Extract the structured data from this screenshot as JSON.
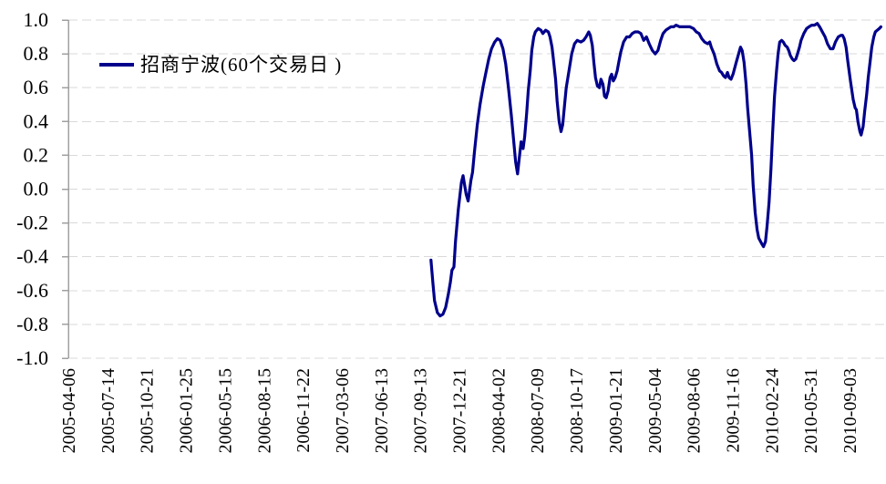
{
  "chart_data": {
    "type": "line",
    "title": "",
    "xlabel": "",
    "ylabel": "",
    "ylim": [
      -1.0,
      1.0
    ],
    "grid": "horizontal-dashed",
    "legend_position": "top-left-inside",
    "colors": {
      "series": "#00008B",
      "grid": "#d9d9d9",
      "axis": "#a0a0a0",
      "text": "#000000",
      "background": "#ffffff"
    },
    "y_ticks": [
      "1.0",
      "0.8",
      "0.6",
      "0.4",
      "0.2",
      "0.0",
      "-0.2",
      "-0.4",
      "-0.6",
      "-0.8",
      "-1.0"
    ],
    "x_ticks": [
      "2005-04-06",
      "2005-07-14",
      "2005-10-21",
      "2006-01-25",
      "2006-05-15",
      "2006-08-15",
      "2006-11-22",
      "2007-03-06",
      "2007-06-13",
      "2007-09-13",
      "2007-12-21",
      "2008-04-02",
      "2008-07-09",
      "2008-10-17",
      "2009-01-21",
      "2009-05-04",
      "2009-08-06",
      "2009-11-16",
      "2010-02-24",
      "2010-05-31",
      "2010-09-03"
    ],
    "series": [
      {
        "name": "招商宁波(60个交易日 )",
        "color": "#00008B",
        "points": [
          [
            "2007-10-08",
            -0.42
          ],
          [
            "2007-10-13",
            -0.56
          ],
          [
            "2007-10-17",
            -0.66
          ],
          [
            "2007-10-24",
            -0.73
          ],
          [
            "2007-10-31",
            -0.75
          ],
          [
            "2007-11-07",
            -0.74
          ],
          [
            "2007-11-14",
            -0.7
          ],
          [
            "2007-11-21",
            -0.62
          ],
          [
            "2007-11-26",
            -0.55
          ],
          [
            "2007-11-30",
            -0.48
          ],
          [
            "2007-12-05",
            -0.46
          ],
          [
            "2007-12-09",
            -0.31
          ],
          [
            "2007-12-16",
            -0.12
          ],
          [
            "2007-12-24",
            0.04
          ],
          [
            "2007-12-28",
            0.08
          ],
          [
            "2008-01-05",
            -0.03
          ],
          [
            "2008-01-10",
            -0.07
          ],
          [
            "2008-01-17",
            0.05
          ],
          [
            "2008-01-21",
            0.1
          ],
          [
            "2008-01-26",
            0.22
          ],
          [
            "2008-02-02",
            0.38
          ],
          [
            "2008-02-09",
            0.5
          ],
          [
            "2008-02-17",
            0.61
          ],
          [
            "2008-02-24",
            0.69
          ],
          [
            "2008-03-02",
            0.77
          ],
          [
            "2008-03-09",
            0.83
          ],
          [
            "2008-03-17",
            0.87
          ],
          [
            "2008-03-24",
            0.89
          ],
          [
            "2008-03-31",
            0.88
          ],
          [
            "2008-04-07",
            0.83
          ],
          [
            "2008-04-14",
            0.74
          ],
          [
            "2008-04-21",
            0.6
          ],
          [
            "2008-04-28",
            0.44
          ],
          [
            "2008-05-09",
            0.16
          ],
          [
            "2008-05-14",
            0.09
          ],
          [
            "2008-05-18",
            0.18
          ],
          [
            "2008-05-23",
            0.28
          ],
          [
            "2008-05-28",
            0.24
          ],
          [
            "2008-06-01",
            0.31
          ],
          [
            "2008-06-06",
            0.45
          ],
          [
            "2008-06-10",
            0.58
          ],
          [
            "2008-06-15",
            0.7
          ],
          [
            "2008-06-19",
            0.82
          ],
          [
            "2008-06-24",
            0.9
          ],
          [
            "2008-06-28",
            0.93
          ],
          [
            "2008-07-05",
            0.95
          ],
          [
            "2008-07-12",
            0.94
          ],
          [
            "2008-07-17",
            0.92
          ],
          [
            "2008-07-24",
            0.94
          ],
          [
            "2008-07-31",
            0.93
          ],
          [
            "2008-08-04",
            0.9
          ],
          [
            "2008-08-09",
            0.84
          ],
          [
            "2008-08-13",
            0.76
          ],
          [
            "2008-08-18",
            0.65
          ],
          [
            "2008-08-22",
            0.52
          ],
          [
            "2008-08-27",
            0.4
          ],
          [
            "2008-09-01",
            0.34
          ],
          [
            "2008-09-05",
            0.38
          ],
          [
            "2008-09-10",
            0.5
          ],
          [
            "2008-09-14",
            0.6
          ],
          [
            "2008-09-21",
            0.7
          ],
          [
            "2008-09-28",
            0.8
          ],
          [
            "2008-10-05",
            0.86
          ],
          [
            "2008-10-12",
            0.88
          ],
          [
            "2008-10-21",
            0.87
          ],
          [
            "2008-10-28",
            0.88
          ],
          [
            "2008-11-03",
            0.9
          ],
          [
            "2008-11-10",
            0.93
          ],
          [
            "2008-11-14",
            0.91
          ],
          [
            "2008-11-19",
            0.85
          ],
          [
            "2008-11-23",
            0.75
          ],
          [
            "2008-11-27",
            0.66
          ],
          [
            "2008-12-02",
            0.61
          ],
          [
            "2008-12-07",
            0.6
          ],
          [
            "2008-12-11",
            0.65
          ],
          [
            "2008-12-16",
            0.62
          ],
          [
            "2008-12-20",
            0.55
          ],
          [
            "2008-12-24",
            0.54
          ],
          [
            "2008-12-29",
            0.58
          ],
          [
            "2009-01-03",
            0.66
          ],
          [
            "2009-01-07",
            0.68
          ],
          [
            "2009-01-11",
            0.64
          ],
          [
            "2009-01-16",
            0.66
          ],
          [
            "2009-01-21",
            0.7
          ],
          [
            "2009-01-25",
            0.75
          ],
          [
            "2009-01-30",
            0.81
          ],
          [
            "2009-02-06",
            0.87
          ],
          [
            "2009-02-14",
            0.9
          ],
          [
            "2009-02-21",
            0.9
          ],
          [
            "2009-02-28",
            0.92
          ],
          [
            "2009-03-07",
            0.93
          ],
          [
            "2009-03-15",
            0.93
          ],
          [
            "2009-03-22",
            0.92
          ],
          [
            "2009-03-29",
            0.88
          ],
          [
            "2009-04-05",
            0.9
          ],
          [
            "2009-04-12",
            0.86
          ],
          [
            "2009-04-20",
            0.82
          ],
          [
            "2009-04-27",
            0.8
          ],
          [
            "2009-05-04",
            0.82
          ],
          [
            "2009-05-11",
            0.88
          ],
          [
            "2009-05-17",
            0.92
          ],
          [
            "2009-05-24",
            0.94
          ],
          [
            "2009-05-30",
            0.95
          ],
          [
            "2009-06-06",
            0.96
          ],
          [
            "2009-06-13",
            0.96
          ],
          [
            "2009-06-19",
            0.97
          ],
          [
            "2009-06-28",
            0.96
          ],
          [
            "2009-07-07",
            0.96
          ],
          [
            "2009-07-15",
            0.96
          ],
          [
            "2009-07-24",
            0.96
          ],
          [
            "2009-08-02",
            0.95
          ],
          [
            "2009-08-09",
            0.93
          ],
          [
            "2009-08-16",
            0.92
          ],
          [
            "2009-08-23",
            0.89
          ],
          [
            "2009-08-30",
            0.87
          ],
          [
            "2009-09-07",
            0.86
          ],
          [
            "2009-09-12",
            0.87
          ],
          [
            "2009-09-16",
            0.84
          ],
          [
            "2009-09-23",
            0.8
          ],
          [
            "2009-09-30",
            0.74
          ],
          [
            "2009-10-07",
            0.7
          ],
          [
            "2009-10-12",
            0.69
          ],
          [
            "2009-10-17",
            0.67
          ],
          [
            "2009-10-22",
            0.66
          ],
          [
            "2009-10-27",
            0.69
          ],
          [
            "2009-10-31",
            0.66
          ],
          [
            "2009-11-05",
            0.65
          ],
          [
            "2009-11-10",
            0.68
          ],
          [
            "2009-11-17",
            0.74
          ],
          [
            "2009-11-24",
            0.8
          ],
          [
            "2009-11-29",
            0.84
          ],
          [
            "2009-12-03",
            0.82
          ],
          [
            "2009-12-08",
            0.75
          ],
          [
            "2009-12-13",
            0.62
          ],
          [
            "2009-12-17",
            0.48
          ],
          [
            "2009-12-22",
            0.34
          ],
          [
            "2009-12-27",
            0.2
          ],
          [
            "2009-12-31",
            0.02
          ],
          [
            "2010-01-05",
            -0.14
          ],
          [
            "2010-01-10",
            -0.24
          ],
          [
            "2010-01-14",
            -0.29
          ],
          [
            "2010-01-21",
            -0.32
          ],
          [
            "2010-01-26",
            -0.34
          ],
          [
            "2010-01-31",
            -0.31
          ],
          [
            "2010-02-04",
            -0.22
          ],
          [
            "2010-02-09",
            -0.08
          ],
          [
            "2010-02-14",
            0.12
          ],
          [
            "2010-02-18",
            0.33
          ],
          [
            "2010-02-23",
            0.55
          ],
          [
            "2010-02-28",
            0.7
          ],
          [
            "2010-03-04",
            0.8
          ],
          [
            "2010-03-08",
            0.87
          ],
          [
            "2010-03-13",
            0.88
          ],
          [
            "2010-03-17",
            0.87
          ],
          [
            "2010-03-22",
            0.85
          ],
          [
            "2010-03-27",
            0.84
          ],
          [
            "2010-03-31",
            0.82
          ],
          [
            "2010-04-04",
            0.79
          ],
          [
            "2010-04-09",
            0.77
          ],
          [
            "2010-04-13",
            0.76
          ],
          [
            "2010-04-18",
            0.77
          ],
          [
            "2010-04-22",
            0.8
          ],
          [
            "2010-04-27",
            0.84
          ],
          [
            "2010-05-01",
            0.88
          ],
          [
            "2010-05-08",
            0.92
          ],
          [
            "2010-05-15",
            0.95
          ],
          [
            "2010-05-21",
            0.96
          ],
          [
            "2010-05-28",
            0.97
          ],
          [
            "2010-06-04",
            0.97
          ],
          [
            "2010-06-11",
            0.98
          ],
          [
            "2010-06-17",
            0.96
          ],
          [
            "2010-06-24",
            0.93
          ],
          [
            "2010-07-01",
            0.9
          ],
          [
            "2010-07-07",
            0.86
          ],
          [
            "2010-07-14",
            0.83
          ],
          [
            "2010-07-21",
            0.83
          ],
          [
            "2010-07-27",
            0.87
          ],
          [
            "2010-08-03",
            0.9
          ],
          [
            "2010-08-10",
            0.91
          ],
          [
            "2010-08-14",
            0.91
          ],
          [
            "2010-08-18",
            0.89
          ],
          [
            "2010-08-23",
            0.84
          ],
          [
            "2010-08-27",
            0.76
          ],
          [
            "2010-09-03",
            0.64
          ],
          [
            "2010-09-10",
            0.53
          ],
          [
            "2010-09-15",
            0.48
          ],
          [
            "2010-09-18",
            0.47
          ],
          [
            "2010-09-22",
            0.4
          ],
          [
            "2010-09-27",
            0.34
          ],
          [
            "2010-09-30",
            0.32
          ],
          [
            "2010-10-05",
            0.37
          ],
          [
            "2010-10-09",
            0.46
          ],
          [
            "2010-10-14",
            0.56
          ],
          [
            "2010-10-18",
            0.66
          ],
          [
            "2010-10-23",
            0.76
          ],
          [
            "2010-10-27",
            0.84
          ],
          [
            "2010-11-01",
            0.9
          ],
          [
            "2010-11-05",
            0.93
          ],
          [
            "2010-11-10",
            0.94
          ],
          [
            "2010-11-15",
            0.95
          ],
          [
            "2010-11-19",
            0.96
          ]
        ]
      }
    ]
  }
}
